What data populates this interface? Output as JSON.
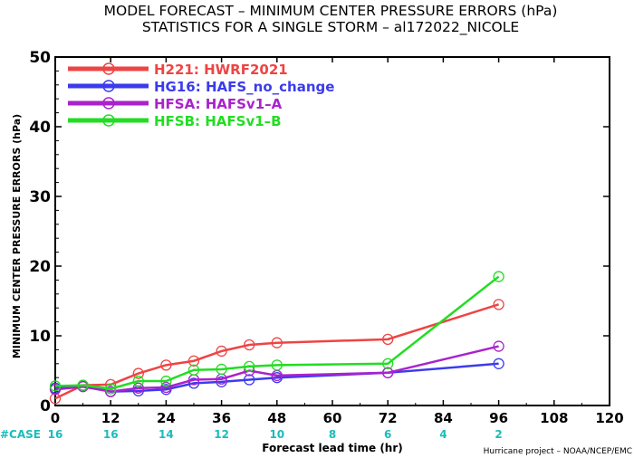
{
  "chart_data": {
    "type": "line",
    "title": "MODEL FORECAST – MINIMUM CENTER PRESSURE ERRORS (hPa)",
    "subtitle": "STATISTICS FOR A SINGLE STORM – al172022_NICOLE",
    "xlabel": "Forecast lead time (hr)",
    "ylabel": "MINIMUM CENTER PRESSURE ERRORS (hPa)",
    "xlim": [
      0,
      120
    ],
    "ylim": [
      0,
      50
    ],
    "xticks": [
      0,
      12,
      24,
      36,
      48,
      60,
      72,
      84,
      96,
      108,
      120
    ],
    "yticks": [
      0,
      10,
      20,
      30,
      40,
      50
    ],
    "grid": false,
    "legend_position": "top-left",
    "case_label": "#CASE",
    "case_counts": [
      {
        "x": 0,
        "n": "16"
      },
      {
        "x": 12,
        "n": "16"
      },
      {
        "x": 24,
        "n": "14"
      },
      {
        "x": 36,
        "n": "12"
      },
      {
        "x": 48,
        "n": "10"
      },
      {
        "x": 60,
        "n": "8"
      },
      {
        "x": 72,
        "n": "6"
      },
      {
        "x": 84,
        "n": "4"
      },
      {
        "x": 96,
        "n": "2"
      }
    ],
    "credit": "Hurricane project – NOAA/NCEP/EMC",
    "series": [
      {
        "name": "H221: HWRF2021",
        "color": "#ee4444",
        "points": [
          [
            0,
            1.0
          ],
          [
            6,
            2.9
          ],
          [
            12,
            3.0
          ],
          [
            18,
            4.6
          ],
          [
            24,
            5.8
          ],
          [
            30,
            6.4
          ],
          [
            36,
            7.8
          ],
          [
            42,
            8.7
          ],
          [
            48,
            9.0
          ],
          [
            72,
            9.5
          ],
          [
            96,
            14.5
          ]
        ]
      },
      {
        "name": "HG16: HAFS_no_change",
        "color": "#3b3bee",
        "points": [
          [
            0,
            2.5
          ],
          [
            6,
            2.8
          ],
          [
            12,
            2.0
          ],
          [
            18,
            2.1
          ],
          [
            24,
            2.3
          ],
          [
            30,
            3.2
          ],
          [
            36,
            3.4
          ],
          [
            42,
            3.7
          ],
          [
            48,
            4.0
          ],
          [
            72,
            4.7
          ],
          [
            96,
            6.0
          ]
        ]
      },
      {
        "name": "HFSA: HAFSv1–A",
        "color": "#aa22cc",
        "points": [
          [
            0,
            2.3
          ],
          [
            6,
            2.7
          ],
          [
            12,
            2.0
          ],
          [
            18,
            2.5
          ],
          [
            24,
            2.6
          ],
          [
            30,
            3.7
          ],
          [
            36,
            3.8
          ],
          [
            42,
            5.0
          ],
          [
            48,
            4.3
          ],
          [
            72,
            4.7
          ],
          [
            96,
            8.5
          ]
        ]
      },
      {
        "name": "HFSB: HAFSv1–B",
        "color": "#22dd22",
        "points": [
          [
            0,
            2.8
          ],
          [
            6,
            2.9
          ],
          [
            12,
            2.4
          ],
          [
            18,
            3.5
          ],
          [
            24,
            3.5
          ],
          [
            30,
            5.1
          ],
          [
            36,
            5.2
          ],
          [
            42,
            5.6
          ],
          [
            48,
            5.8
          ],
          [
            72,
            6.0
          ],
          [
            96,
            18.5
          ]
        ]
      }
    ]
  }
}
